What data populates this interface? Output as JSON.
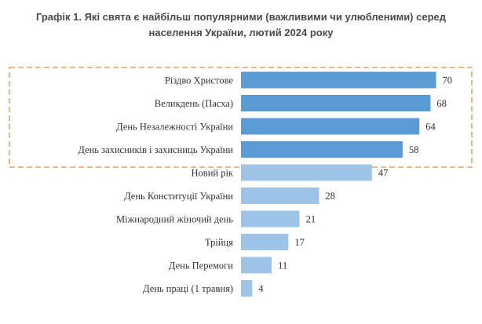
{
  "chart_data": {
    "type": "bar",
    "orientation": "horizontal",
    "title_line1": "Графік 1.  Які свята є найбільш популярними (важливими чи улюбленими) серед",
    "title_line2": "населення України, лютий 2024 року",
    "categories": [
      "Різдво Христове",
      "Великдень (Пасха)",
      "День Незалежності України",
      "День захисників і захисниць України",
      "Новий рік",
      "День Конституції України",
      "Міжнародний жіночий день",
      "Трійця",
      "День Перемоги",
      "День праці (1 травня)"
    ],
    "values": [
      70,
      68,
      64,
      58,
      47,
      28,
      21,
      17,
      11,
      4
    ],
    "xlim": [
      0,
      70
    ],
    "highlighted_top": 4,
    "colors": {
      "highlight_bar": "#5b9bd5",
      "normal_bar": "#9dc3e6",
      "dashed_border": "#e8a162",
      "text": "#333333",
      "title": "#4a4a4a"
    },
    "xlabel": "",
    "ylabel": "",
    "grid": false,
    "legend": "none"
  }
}
